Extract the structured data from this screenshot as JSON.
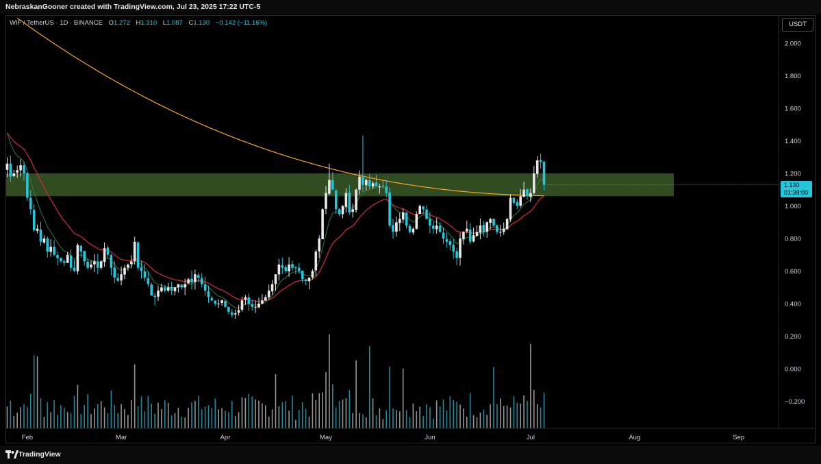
{
  "header": {
    "text": "NebraskanGooner created with TradingView.com, Jul 23, 2025 17:22 UTC-5"
  },
  "legend": {
    "symbol": "WIF / TetherUS · 1D · BINANCE",
    "o_label": "O",
    "o_value": "1.272",
    "h_label": "H",
    "h_value": "1.310",
    "l_label": "L",
    "l_value": "1.087",
    "c_label": "C",
    "c_value": "1.130",
    "change": "−0.142 (−11.16%)"
  },
  "currency_button": "USDT",
  "price_tag": {
    "price": "1.130",
    "countdown": "01:38:00"
  },
  "footer": {
    "brand": "TradingView"
  },
  "colors": {
    "up": "#e8e8e8",
    "down": "#26c6da",
    "zone": "#5a8a3c",
    "ma_long": "#f5a623",
    "ma_mid": "#d32f2f",
    "ma_short": "#2e7d32",
    "background": "#000000"
  },
  "chart_data": {
    "type": "candlestick",
    "ylim": [
      -0.37,
      2.22
    ],
    "y_ticks": [
      2.0,
      1.8,
      1.6,
      1.4,
      1.2,
      1.0,
      0.8,
      0.6,
      0.4,
      0.2,
      0.0,
      -0.2
    ],
    "y_tick_labels": [
      "2.000",
      "1.800",
      "1.600",
      "1.400",
      "1.200",
      "1.000",
      "0.800",
      "0.600",
      "0.400",
      "0.200",
      "0.000",
      "−0.200"
    ],
    "x_labels": [
      "Feb",
      "Mar",
      "Apr",
      "May",
      "Jun",
      "Jul",
      "Aug",
      "Sep"
    ],
    "x_label_days": [
      6,
      34,
      65,
      95,
      126,
      156,
      187,
      218
    ],
    "first_day": "2025-01-26",
    "last_price": 1.13,
    "zone": {
      "low": 1.06,
      "high": 1.2
    },
    "close": [
      1.26,
      1.18,
      1.2,
      1.22,
      1.25,
      1.2,
      1.05,
      0.98,
      0.85,
      0.86,
      0.78,
      0.8,
      0.72,
      0.75,
      0.7,
      0.68,
      0.66,
      0.65,
      0.7,
      0.62,
      0.6,
      0.76,
      0.72,
      0.66,
      0.62,
      0.64,
      0.66,
      0.62,
      0.66,
      0.74,
      0.7,
      0.62,
      0.56,
      0.54,
      0.58,
      0.62,
      0.64,
      0.66,
      0.78,
      0.62,
      0.6,
      0.56,
      0.52,
      0.45,
      0.44,
      0.48,
      0.5,
      0.48,
      0.5,
      0.48,
      0.5,
      0.52,
      0.5,
      0.52,
      0.55,
      0.53,
      0.58,
      0.56,
      0.52,
      0.48,
      0.44,
      0.42,
      0.4,
      0.4,
      0.42,
      0.38,
      0.35,
      0.33,
      0.34,
      0.36,
      0.42,
      0.44,
      0.4,
      0.38,
      0.38,
      0.4,
      0.42,
      0.44,
      0.48,
      0.52,
      0.58,
      0.64,
      0.62,
      0.6,
      0.64,
      0.62,
      0.62,
      0.6,
      0.55,
      0.54,
      0.56,
      0.6,
      0.72,
      0.8,
      0.98,
      1.08,
      1.16,
      1.1,
      0.98,
      0.95,
      1.0,
      1.08,
      0.96,
      0.98,
      1.1,
      1.18,
      1.13,
      1.16,
      1.12,
      1.14,
      1.12,
      1.12,
      1.12,
      1.08,
      0.88,
      0.84,
      0.9,
      0.92,
      0.96,
      0.88,
      0.84,
      0.86,
      0.95,
      1.0,
      0.98,
      0.92,
      0.88,
      0.86,
      0.88,
      0.84,
      0.8,
      0.78,
      0.76,
      0.72,
      0.68,
      0.8,
      0.84,
      0.86,
      0.78,
      0.82,
      0.84,
      0.88,
      0.84,
      0.9,
      0.92,
      0.88,
      0.84,
      0.84,
      0.86,
      0.92,
      1.05,
      1.02,
      1.0,
      1.06,
      1.1,
      1.06,
      1.08,
      1.2,
      1.28,
      1.27,
      1.13
    ],
    "series": [
      {
        "name": "",
        "values": []
      }
    ]
  }
}
